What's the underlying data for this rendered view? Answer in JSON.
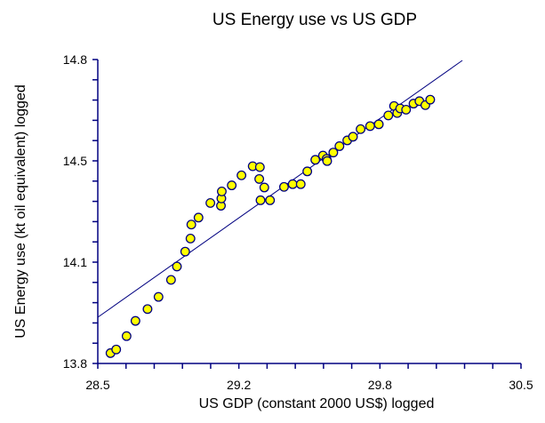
{
  "chart_data": {
    "type": "scatter",
    "title": "US Energy use vs US GDP",
    "xlabel": "US GDP (constant 2000 US$) logged",
    "ylabel": "US Energy use (kt oil equivalent) logged",
    "xlim": [
      28.5,
      30.5
    ],
    "ylim": [
      13.8,
      14.8
    ],
    "x_ticks": {
      "count_intervals": 15,
      "labels": [
        "28.5",
        "29.2",
        "29.8",
        "30.5"
      ],
      "label_values": [
        28.5,
        29.1667,
        29.8333,
        30.5
      ]
    },
    "y_ticks": {
      "count_intervals": 15,
      "labels": [
        "13.8",
        "14.1",
        "14.5",
        "14.8"
      ],
      "label_values": [
        13.8,
        14.1333,
        14.4667,
        14.8
      ]
    },
    "grid": false,
    "legend": "none",
    "colors": {
      "marker_fill": "#ffff00",
      "marker_edge": "#000080",
      "axis": "#000080",
      "trend_line": "#000080"
    },
    "trend_line": {
      "x": [
        28.5,
        30.223
      ],
      "y": [
        13.952,
        14.797
      ]
    },
    "series": [
      {
        "name": "US",
        "points": [
          [
            28.56,
            13.834
          ],
          [
            28.587,
            13.846
          ],
          [
            28.636,
            13.89
          ],
          [
            28.678,
            13.94
          ],
          [
            28.735,
            13.979
          ],
          [
            28.787,
            14.019
          ],
          [
            28.846,
            14.075
          ],
          [
            28.874,
            14.119
          ],
          [
            28.913,
            14.168
          ],
          [
            28.938,
            14.211
          ],
          [
            28.942,
            14.257
          ],
          [
            28.976,
            14.28
          ],
          [
            29.032,
            14.328
          ],
          [
            29.082,
            14.319
          ],
          [
            29.084,
            14.343
          ],
          [
            29.086,
            14.366
          ],
          [
            29.133,
            14.386
          ],
          [
            29.179,
            14.419
          ],
          [
            29.232,
            14.449
          ],
          [
            29.266,
            14.446
          ],
          [
            29.263,
            14.407
          ],
          [
            29.287,
            14.379
          ],
          [
            29.269,
            14.337
          ],
          [
            29.314,
            14.337
          ],
          [
            29.38,
            14.381
          ],
          [
            29.421,
            14.39
          ],
          [
            29.459,
            14.39
          ],
          [
            29.49,
            14.432
          ],
          [
            29.528,
            14.47
          ],
          [
            29.564,
            14.484
          ],
          [
            29.581,
            14.473
          ],
          [
            29.584,
            14.466
          ],
          [
            29.613,
            14.494
          ],
          [
            29.642,
            14.515
          ],
          [
            29.679,
            14.534
          ],
          [
            29.706,
            14.546
          ],
          [
            29.742,
            14.571
          ],
          [
            29.787,
            14.581
          ],
          [
            29.828,
            14.587
          ],
          [
            29.873,
            14.616
          ],
          [
            29.9,
            14.647
          ],
          [
            29.915,
            14.624
          ],
          [
            29.929,
            14.639
          ],
          [
            29.957,
            14.635
          ],
          [
            29.992,
            14.655
          ],
          [
            30.02,
            14.663
          ],
          [
            30.048,
            14.65
          ],
          [
            30.071,
            14.668
          ]
        ]
      }
    ]
  }
}
